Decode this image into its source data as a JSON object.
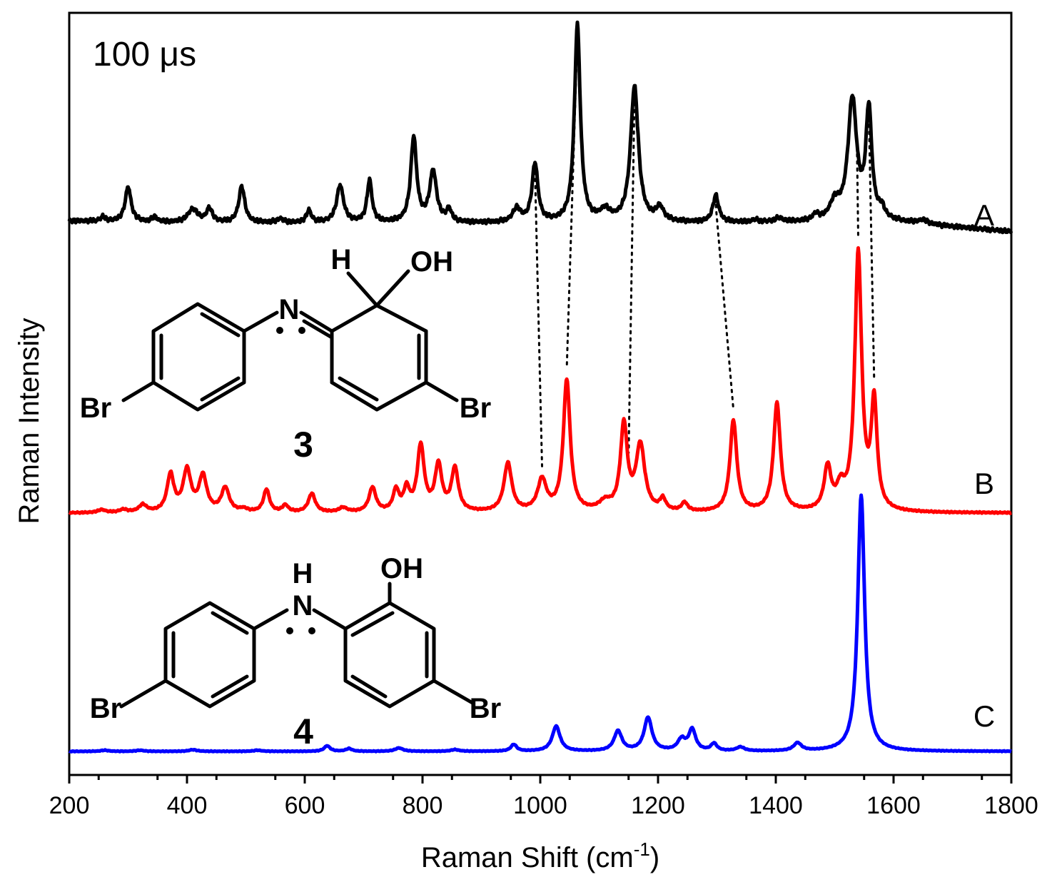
{
  "chart_data": {
    "type": "line",
    "annotation": "100 μs",
    "xlabel": "Raman Shift (cm⁻¹)",
    "xlabel_main": "Raman Shift (cm",
    "xlabel_sup": "-1",
    "xlabel_close": ")",
    "ylabel": "Raman Intensity",
    "xlim": [
      200,
      1800
    ],
    "x_ticks": [
      200,
      400,
      600,
      800,
      1000,
      1200,
      1400,
      1600,
      1800
    ],
    "x_tick_labels": [
      "200",
      "400",
      "600",
      "800",
      "1000",
      "1200",
      "1400",
      "1600",
      "1800"
    ],
    "y_ticks": false,
    "grid": false,
    "series": [
      {
        "label": "A",
        "color": "#000000",
        "baseline": [
          [
            200,
            0.02
          ],
          [
            400,
            -0.02
          ],
          [
            1000,
            -0.03
          ],
          [
            1600,
            -0.01
          ],
          [
            1800,
            -0.2
          ]
        ],
        "noise": 0.05,
        "peaks": [
          [
            257,
            0.09,
            5
          ],
          [
            300,
            0.72,
            6
          ],
          [
            345,
            0.1,
            5
          ],
          [
            410,
            0.28,
            10
          ],
          [
            438,
            0.28,
            6
          ],
          [
            493,
            0.75,
            6
          ],
          [
            558,
            0.08,
            6
          ],
          [
            607,
            0.25,
            5
          ],
          [
            660,
            0.77,
            7
          ],
          [
            710,
            0.87,
            5
          ],
          [
            785,
            1.75,
            6
          ],
          [
            818,
            1.05,
            7
          ],
          [
            845,
            0.25,
            5
          ],
          [
            960,
            0.28,
            8
          ],
          [
            991,
            1.21,
            6
          ],
          [
            1063,
            4.06,
            6
          ],
          [
            1110,
            0.22,
            10
          ],
          [
            1160,
            2.79,
            8
          ],
          [
            1203,
            0.28,
            8
          ],
          [
            1298,
            0.55,
            6
          ],
          [
            1365,
            0.05,
            6
          ],
          [
            1405,
            0.08,
            8
          ],
          [
            1468,
            0.12,
            6
          ],
          [
            1500,
            0.35,
            10
          ],
          [
            1530,
            2.5,
            9
          ],
          [
            1558,
            2.25,
            6
          ],
          [
            1580,
            0.2,
            6
          ],
          [
            1650,
            0.08,
            10
          ]
        ],
        "max_value": 4.06
      },
      {
        "label": "B",
        "color": "#ff0000",
        "baseline": [
          [
            200,
            0.0
          ],
          [
            1800,
            0.0
          ]
        ],
        "noise": 0.015,
        "peaks": [
          [
            255,
            0.05,
            8
          ],
          [
            292,
            0.05,
            8
          ],
          [
            325,
            0.13,
            8
          ],
          [
            372,
            0.65,
            7
          ],
          [
            400,
            0.72,
            8
          ],
          [
            427,
            0.62,
            8
          ],
          [
            465,
            0.42,
            8
          ],
          [
            496,
            0.05,
            8
          ],
          [
            535,
            0.4,
            6
          ],
          [
            567,
            0.12,
            6
          ],
          [
            612,
            0.33,
            7
          ],
          [
            665,
            0.08,
            8
          ],
          [
            715,
            0.43,
            7
          ],
          [
            755,
            0.37,
            6
          ],
          [
            773,
            0.38,
            6
          ],
          [
            797,
            1.15,
            7
          ],
          [
            827,
            0.8,
            7
          ],
          [
            855,
            0.75,
            7
          ],
          [
            945,
            0.85,
            8
          ],
          [
            1003,
            0.55,
            9
          ],
          [
            1045,
            2.3,
            7
          ],
          [
            1110,
            0.15,
            12
          ],
          [
            1142,
            1.5,
            7
          ],
          [
            1170,
            1.15,
            9
          ],
          [
            1208,
            0.2,
            6
          ],
          [
            1245,
            0.15,
            6
          ],
          [
            1328,
            1.6,
            7
          ],
          [
            1402,
            1.9,
            7
          ],
          [
            1488,
            0.75,
            7
          ],
          [
            1510,
            0.35,
            8
          ],
          [
            1540,
            4.5,
            7
          ],
          [
            1567,
            1.85,
            6
          ]
        ],
        "max_value": 4.5
      },
      {
        "label": "C",
        "color": "#0000ff",
        "baseline": [
          [
            200,
            0.0
          ],
          [
            1800,
            0.0
          ]
        ],
        "noise": 0.008,
        "peaks": [
          [
            260,
            0.02,
            8
          ],
          [
            320,
            0.02,
            8
          ],
          [
            410,
            0.03,
            8
          ],
          [
            520,
            0.02,
            8
          ],
          [
            638,
            0.1,
            6
          ],
          [
            675,
            0.05,
            6
          ],
          [
            760,
            0.06,
            8
          ],
          [
            855,
            0.03,
            8
          ],
          [
            955,
            0.12,
            6
          ],
          [
            1027,
            0.45,
            8
          ],
          [
            1132,
            0.36,
            8
          ],
          [
            1183,
            0.6,
            8
          ],
          [
            1240,
            0.2,
            8
          ],
          [
            1258,
            0.38,
            7
          ],
          [
            1295,
            0.13,
            6
          ],
          [
            1340,
            0.07,
            8
          ],
          [
            1437,
            0.14,
            8
          ],
          [
            1545,
            4.6,
            7
          ]
        ],
        "max_value": 4.6
      }
    ],
    "correlation_lines": [
      [
        991,
        1003
      ],
      [
        1063,
        1045
      ],
      [
        1160,
        1150
      ],
      [
        1298,
        1328
      ],
      [
        1538,
        1540
      ],
      [
        1558,
        1567
      ]
    ],
    "structures": [
      {
        "compound_label": "3",
        "atom_labels": [
          "H",
          "OH",
          "N",
          "Br",
          "Br"
        ]
      },
      {
        "compound_label": "4",
        "atom_labels": [
          "H",
          "OH",
          "N",
          "Br",
          "Br"
        ]
      }
    ]
  }
}
